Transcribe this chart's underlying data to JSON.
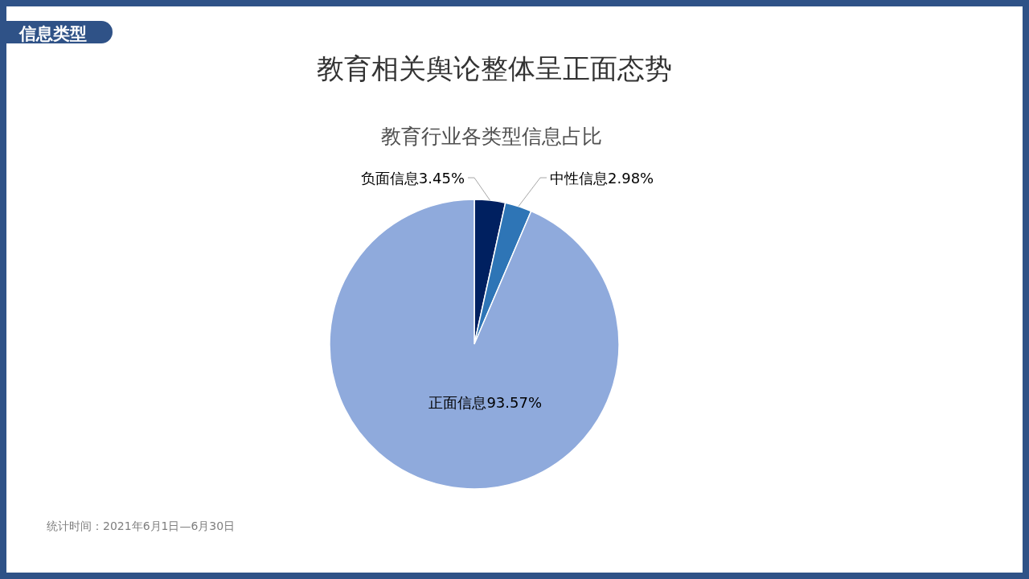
{
  "chart_data": {
    "type": "pie",
    "title": "教育相关舆论整体呈正面态势",
    "subtitle": "教育行业各类型信息占比",
    "categories": [
      "负面信息",
      "中性信息",
      "正面信息"
    ],
    "values": [
      3.45,
      2.98,
      93.57
    ],
    "colors": [
      "#002060",
      "#2e75b6",
      "#8faadc"
    ],
    "value_labels": [
      "3.45%",
      "2.98%",
      "93.57%"
    ],
    "annotations": [
      "信息类型",
      "统计时间：2021年6月1日—6月30日"
    ]
  }
}
